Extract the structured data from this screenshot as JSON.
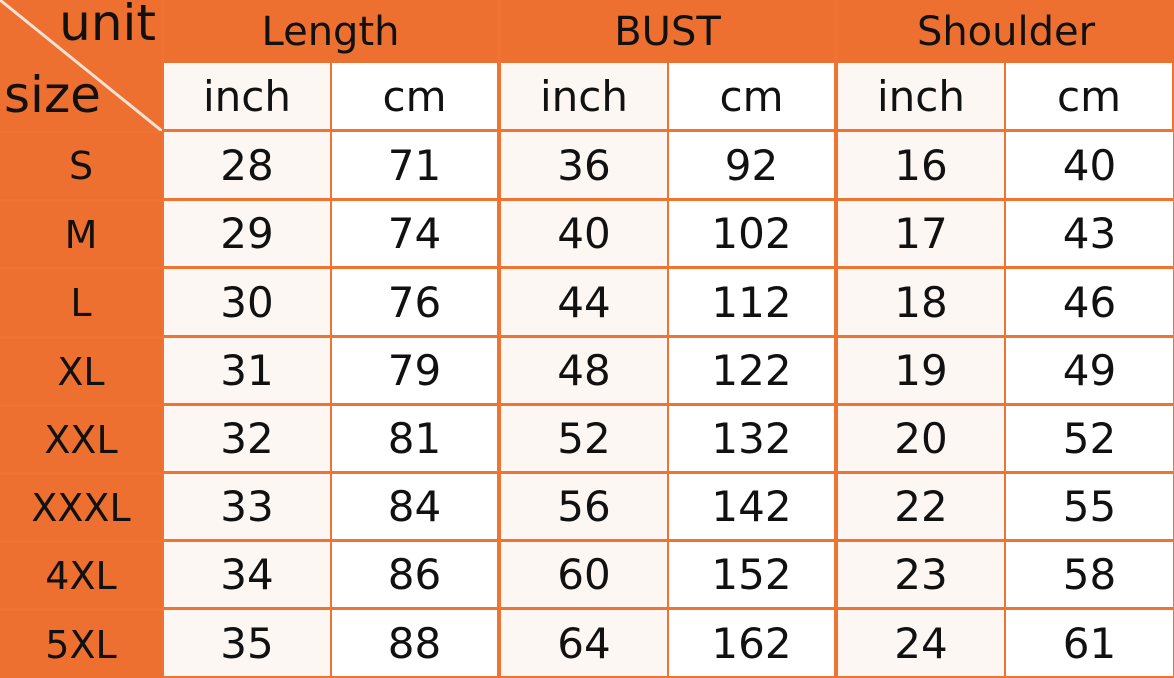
{
  "corner": {
    "unit_label": "unit",
    "size_label": "size"
  },
  "groups": [
    "Length",
    "BUST",
    "Shoulder"
  ],
  "units": [
    "inch",
    "cm",
    "inch",
    "cm",
    "inch",
    "cm"
  ],
  "rows": [
    {
      "size": "S",
      "values": [
        "28",
        "71",
        "36",
        "92",
        "16",
        "40"
      ]
    },
    {
      "size": "M",
      "values": [
        "29",
        "74",
        "40",
        "102",
        "17",
        "43"
      ]
    },
    {
      "size": "L",
      "values": [
        "30",
        "76",
        "44",
        "112",
        "18",
        "46"
      ]
    },
    {
      "size": "XL",
      "values": [
        "31",
        "79",
        "48",
        "122",
        "19",
        "49"
      ]
    },
    {
      "size": "XXL",
      "values": [
        "32",
        "81",
        "52",
        "132",
        "20",
        "52"
      ]
    },
    {
      "size": "XXXL",
      "values": [
        "33",
        "84",
        "56",
        "142",
        "22",
        "55"
      ]
    },
    {
      "size": "4XL",
      "values": [
        "34",
        "86",
        "60",
        "152",
        "23",
        "58"
      ]
    },
    {
      "size": "5XL",
      "values": [
        "35",
        "88",
        "64",
        "162",
        "24",
        "61"
      ]
    }
  ],
  "colors": {
    "header": "#ee7030",
    "cell": "#ffffff",
    "grid": "#ef7432"
  }
}
